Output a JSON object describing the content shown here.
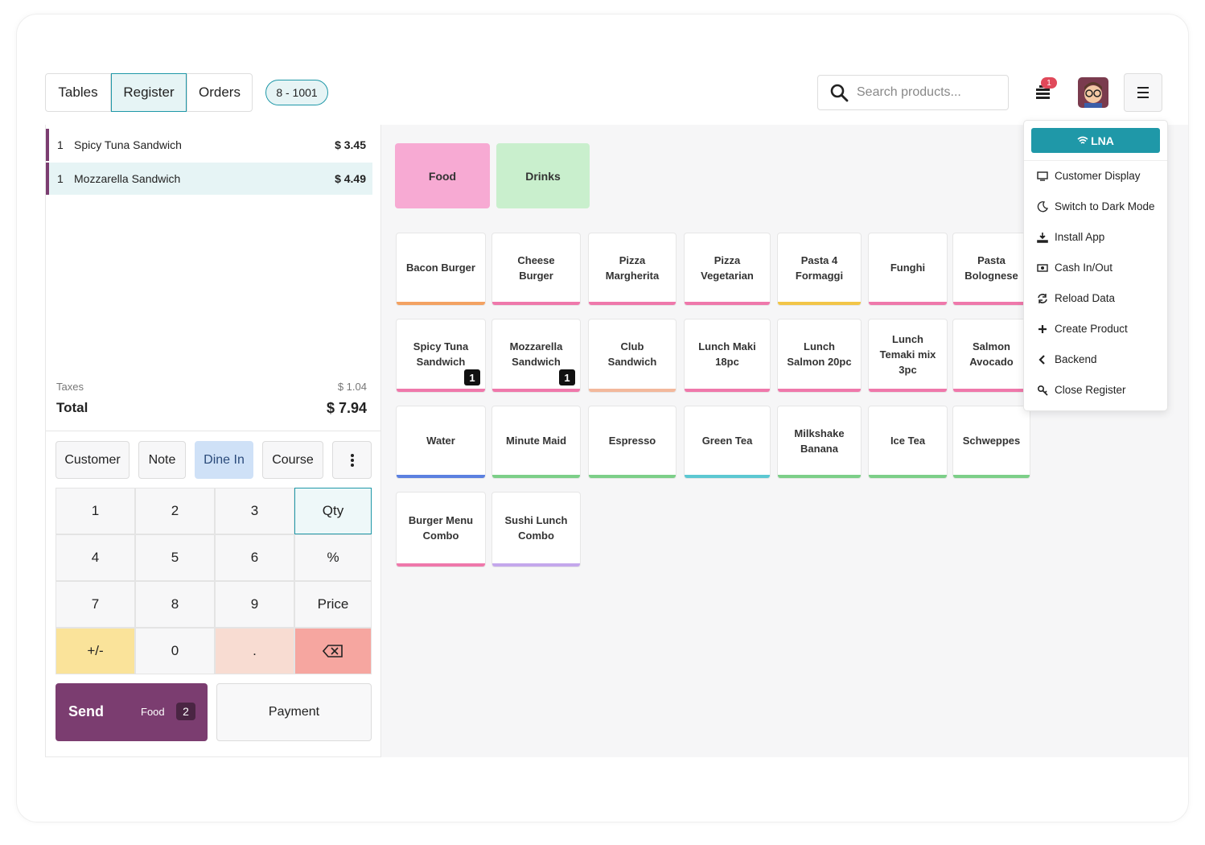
{
  "nav": {
    "tabs": [
      "Tables",
      "Register",
      "Orders"
    ],
    "order_badge": "8 - 1001",
    "search_placeholder": "Search products...",
    "notification_count": "1"
  },
  "order": {
    "lines": [
      {
        "qty": "1",
        "name": "Spicy Tuna Sandwich",
        "price": "$ 3.45"
      },
      {
        "qty": "1",
        "name": "Mozzarella Sandwich",
        "price": "$ 4.49"
      }
    ],
    "taxes": {
      "label": "Taxes",
      "value": "$ 1.04"
    },
    "total": {
      "label": "Total",
      "value": "$ 7.94"
    }
  },
  "actions": [
    "Customer",
    "Note",
    "Dine In",
    "Course"
  ],
  "numpad": [
    "1",
    "2",
    "3",
    "Qty",
    "4",
    "5",
    "6",
    "%",
    "7",
    "8",
    "9",
    "Price",
    "+/-",
    "0",
    "."
  ],
  "send": {
    "label": "Send",
    "category": "Food",
    "count": "2"
  },
  "payment": "Payment",
  "categories": [
    {
      "name": "Food",
      "color": "#f7aad3"
    },
    {
      "name": "Drinks",
      "color": "#c9efcd"
    }
  ],
  "products": [
    {
      "name": "Bacon Burger",
      "color": "#f3a262"
    },
    {
      "name": "Cheese Burger",
      "color": "#ef78ab"
    },
    {
      "name": "Pizza Margherita",
      "color": "#ef78ab"
    },
    {
      "name": "Pizza Vegetarian",
      "color": "#ef78ab"
    },
    {
      "name": "Pasta 4 Formaggi",
      "color": "#f2c547"
    },
    {
      "name": "Funghi",
      "color": "#ef78ab"
    },
    {
      "name": "Pasta Bolognese",
      "color": "#ef78ab"
    },
    {
      "name": "Spicy Tuna Sandwich",
      "color": "#ef78ab",
      "qty": "1"
    },
    {
      "name": "Mozzarella Sandwich",
      "color": "#ef78ab",
      "qty": "1"
    },
    {
      "name": "Club Sandwich",
      "color": "#f3b89c"
    },
    {
      "name": "Lunch Maki 18pc",
      "color": "#ef78ab"
    },
    {
      "name": "Lunch Salmon 20pc",
      "color": "#ef78ab"
    },
    {
      "name": "Lunch Temaki mix 3pc",
      "color": "#ef78ab"
    },
    {
      "name": "Salmon Avocado",
      "color": "#ef78ab"
    },
    {
      "name": "Water",
      "color": "#5b80e0"
    },
    {
      "name": "Minute Maid",
      "color": "#7ccf88"
    },
    {
      "name": "Espresso",
      "color": "#7ccf88"
    },
    {
      "name": "Green Tea",
      "color": "#5cc8d2"
    },
    {
      "name": "Milkshake Banana",
      "color": "#7ccf88"
    },
    {
      "name": "Ice Tea",
      "color": "#7ccf88"
    },
    {
      "name": "Schweppes",
      "color": "#7ccf88"
    },
    {
      "name": "Burger Menu Combo",
      "color": "#ef78ab"
    },
    {
      "name": "Sushi Lunch Combo",
      "color": "#c4a7ec"
    }
  ],
  "menu": {
    "button": "LNA",
    "items": [
      "Customer Display",
      "Switch to Dark Mode",
      "Install App",
      "Cash In/Out",
      "Reload Data",
      "Create Product",
      "Backend",
      "Close Register"
    ]
  }
}
